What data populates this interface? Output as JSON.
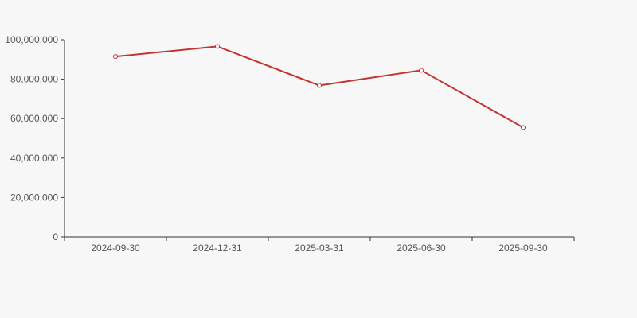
{
  "canvas": {
    "background": "#f7f7f7"
  },
  "chart_data": {
    "type": "line",
    "title": "",
    "xlabel": "",
    "ylabel": "",
    "categories": [
      "2024-09-30",
      "2024-12-31",
      "2025-03-31",
      "2025-06-30",
      "2025-09-30"
    ],
    "series": [
      {
        "name": "",
        "values": [
          91500000,
          96600000,
          76800000,
          84500000,
          55500000
        ]
      }
    ],
    "ylim": [
      0,
      100000000
    ],
    "y_ticks": [
      {
        "value": 0,
        "label": "0"
      },
      {
        "value": 20000000,
        "label": "20,000,000"
      },
      {
        "value": 40000000,
        "label": "40,000,000"
      },
      {
        "value": 60000000,
        "label": "60,000,000"
      },
      {
        "value": 80000000,
        "label": "80,000,000"
      },
      {
        "value": 100000000,
        "label": "100,000,000"
      }
    ],
    "grid": false,
    "legend": false,
    "marker": "hollow-circle",
    "line_color": "#c23531",
    "marker_fill": "#ffffff",
    "axis_color": "#333333",
    "label_color": "#555555"
  }
}
